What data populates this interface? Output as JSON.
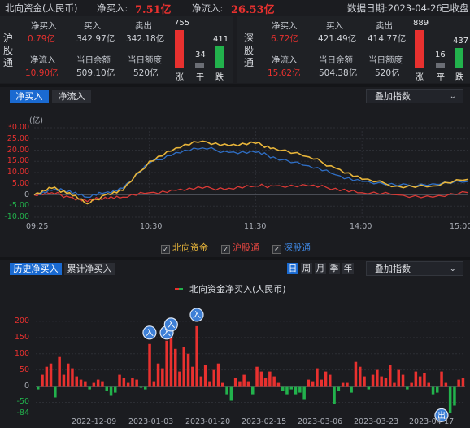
{
  "header": {
    "title": "北向资金(人民币)",
    "net_buy_label": "净买入:",
    "net_buy_value": "7.51亿",
    "net_inflow_label": "净流入:",
    "net_inflow_value": "26.53亿",
    "date_text": "数据日期:2023-04-26",
    "status": "已收盘"
  },
  "sh": {
    "side": [
      "沪",
      "股",
      "通"
    ],
    "net_buy_label": "净买入",
    "net_buy": "0.79亿",
    "buy_label": "买入",
    "buy": "342.97亿",
    "sell_label": "卖出",
    "sell": "342.18亿",
    "net_inflow_label": "净流入",
    "net_inflow": "10.90亿",
    "balance_label": "当日余额",
    "balance": "509.10亿",
    "quota_label": "当日额度",
    "quota": "520亿",
    "up_count": "755",
    "flat_count": "34",
    "down_count": "411",
    "up_label": "涨",
    "flat_label": "平",
    "down_label": "跌"
  },
  "sz": {
    "side": [
      "深",
      "股",
      "通"
    ],
    "net_buy_label": "净买入",
    "net_buy": "6.72亿",
    "buy_label": "买入",
    "buy": "421.49亿",
    "sell_label": "卖出",
    "sell": "414.77亿",
    "net_inflow_label": "净流入",
    "net_inflow": "15.62亿",
    "balance_label": "当日余额",
    "balance": "504.38亿",
    "quota_label": "当日额度",
    "quota": "520亿",
    "up_count": "889",
    "flat_count": "16",
    "down_count": "437",
    "up_label": "涨",
    "flat_label": "平",
    "down_label": "跌"
  },
  "intraday_tabs": {
    "net_buy": "净买入",
    "net_inflow": "净流入",
    "overlay": "叠加指数"
  },
  "colors": {
    "north": "#e8b53a",
    "sh": "#d93a36",
    "sz": "#2f6fc6",
    "up": "#e8312f",
    "down": "#22b24c",
    "accent": "#1a6ad1"
  },
  "legend": {
    "north": "北向资金",
    "sh": "沪股通",
    "sz": "深股通"
  },
  "history_tabs": {
    "hist": "历史净买入",
    "cum": "累计净买入",
    "periods": [
      "日",
      "周",
      "月",
      "季",
      "年"
    ],
    "overlay": "叠加指数"
  },
  "chart_data": [
    {
      "type": "line",
      "unit_label": "(亿)",
      "ylim": [
        -10,
        30
      ],
      "y_ticks": [
        "30.00",
        "25.00",
        "20.00",
        "15.00",
        "10.00",
        "5.00",
        "0",
        "-5.00",
        "-10.00"
      ],
      "x_ticks": [
        "09:25",
        "10:30",
        "11:30",
        "14:00",
        "15:00"
      ],
      "series": [
        {
          "name": "北向资金",
          "x": [
            "09:25",
            "09:35",
            "09:45",
            "09:55",
            "10:05",
            "10:15",
            "10:30",
            "10:45",
            "11:00",
            "11:15",
            "11:30",
            "13:10",
            "13:30",
            "13:45",
            "14:00",
            "14:20",
            "14:40",
            "15:00"
          ],
          "values": [
            0,
            3,
            1,
            -4,
            0,
            2,
            15,
            21,
            24,
            22,
            23,
            21,
            17,
            12,
            7,
            4,
            4,
            7
          ]
        },
        {
          "name": "沪股通",
          "x": [
            "09:25",
            "09:35",
            "09:45",
            "09:55",
            "10:05",
            "10:15",
            "10:30",
            "10:45",
            "11:00",
            "11:15",
            "11:30",
            "13:10",
            "13:30",
            "13:45",
            "14:00",
            "14:20",
            "14:40",
            "15:00"
          ],
          "values": [
            0,
            1,
            -1,
            -3,
            -1,
            -1,
            1,
            2,
            3,
            3,
            4,
            4,
            4,
            3,
            1,
            0,
            -1,
            1
          ]
        },
        {
          "name": "深股通",
          "x": [
            "09:25",
            "09:35",
            "09:45",
            "09:55",
            "10:05",
            "10:15",
            "10:30",
            "10:45",
            "11:00",
            "11:15",
            "11:30",
            "13:10",
            "13:30",
            "13:45",
            "14:00",
            "14:20",
            "14:40",
            "15:00"
          ],
          "values": [
            0,
            2,
            2,
            -1,
            1,
            3,
            14,
            19,
            21,
            19,
            19,
            17,
            13,
            9,
            6,
            4,
            5,
            6
          ]
        }
      ]
    },
    {
      "type": "bar",
      "title": "北向资金净买入(人民币)",
      "ylim": [
        -84,
        250
      ],
      "y_ticks": [
        "200",
        "150",
        "100",
        "50",
        "0",
        "-50"
      ],
      "y_min_label": "-84",
      "x_ticks": [
        "2022-12-09",
        "2023-01-03",
        "2023-01-20",
        "2023-02-15",
        "2023-03-06",
        "2023-03-23",
        "2023-04-17"
      ],
      "values": [
        -10,
        35,
        60,
        70,
        -35,
        90,
        35,
        70,
        55,
        30,
        20,
        15,
        -10,
        10,
        20,
        15,
        -15,
        -30,
        -20,
        35,
        25,
        10,
        25,
        20,
        -5,
        -10,
        130,
        15,
        70,
        55,
        140,
        160,
        115,
        45,
        120,
        100,
        60,
        185,
        30,
        65,
        15,
        50,
        70,
        10,
        -25,
        -45,
        25,
        15,
        35,
        15,
        -25,
        60,
        45,
        25,
        45,
        30,
        10,
        -15,
        -25,
        -10,
        -25,
        -20,
        -40,
        20,
        15,
        55,
        20,
        45,
        35,
        -55,
        -15,
        10,
        10,
        -20,
        75,
        60,
        30,
        -10,
        35,
        50,
        30,
        25,
        65,
        10,
        50,
        35,
        -10,
        10,
        45,
        30,
        40,
        10,
        -25,
        -20,
        45,
        10,
        -84,
        -60,
        20,
        25
      ],
      "annotations": [
        {
          "label": "入",
          "index": 26,
          "value": 150
        },
        {
          "label": "入",
          "index": 30,
          "value": 150
        },
        {
          "label": "入",
          "index": 31,
          "value": 175
        },
        {
          "label": "入",
          "index": 37,
          "value": 205
        },
        {
          "label": "出",
          "index": 94,
          "value": -70
        }
      ]
    }
  ]
}
